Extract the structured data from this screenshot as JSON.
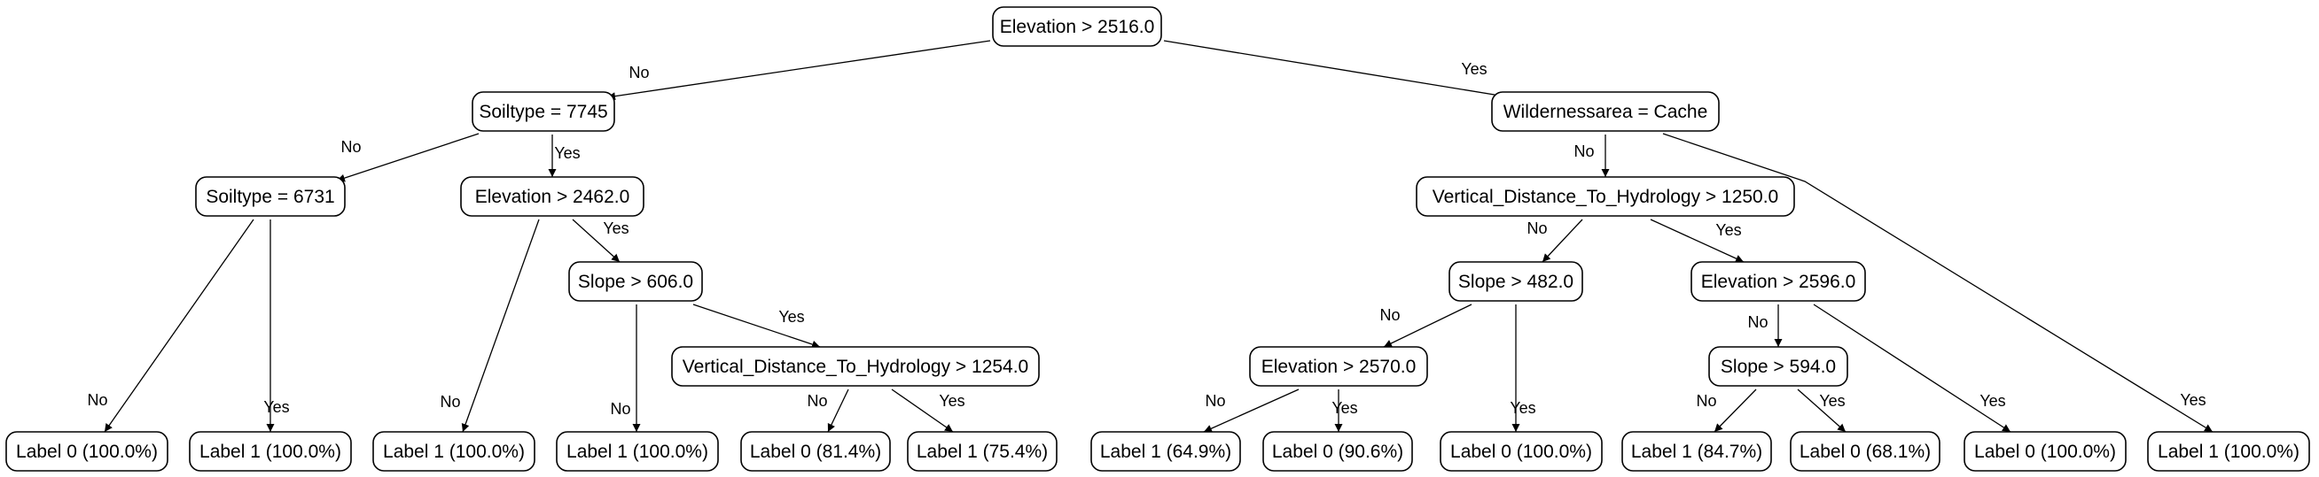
{
  "nodes": {
    "n_root": "Elevation > 2516.0",
    "n_soil7745": "Soiltype = 7745",
    "n_wild": "Wildernessarea = Cache",
    "n_soil6731": "Soiltype = 6731",
    "n_elev2462": "Elevation > 2462.0",
    "n_vdth1250": "Vertical_Distance_To_Hydrology > 1250.0",
    "n_slope606": "Slope > 606.0",
    "n_slope482": "Slope > 482.0",
    "n_elev2596": "Elevation > 2596.0",
    "n_vdth1254": "Vertical_Distance_To_Hydrology > 1254.0",
    "n_elev2570": "Elevation > 2570.0",
    "n_slope594": "Slope > 594.0",
    "l1": "Label 0 (100.0%)",
    "l2": "Label 1 (100.0%)",
    "l3": "Label 1 (100.0%)",
    "l4": "Label 1 (100.0%)",
    "l5": "Label 0 (81.4%)",
    "l6": "Label 1 (75.4%)",
    "l7": "Label 1 (64.9%)",
    "l8": "Label 0 (90.6%)",
    "l9": "Label 0 (100.0%)",
    "l10": "Label 1 (84.7%)",
    "l11": "Label 0 (68.1%)",
    "l12": "Label 0 (100.0%)",
    "l13": "Label 1 (100.0%)"
  },
  "edges": [
    {
      "from": "n_root",
      "to": "n_soil7745",
      "label": "No"
    },
    {
      "from": "n_root",
      "to": "n_wild",
      "label": "Yes"
    },
    {
      "from": "n_soil7745",
      "to": "n_soil6731",
      "label": "No"
    },
    {
      "from": "n_soil7745",
      "to": "n_elev2462",
      "label": "Yes"
    },
    {
      "from": "n_soil6731",
      "to": "l1",
      "label": "No"
    },
    {
      "from": "n_soil6731",
      "to": "l2",
      "label": "Yes"
    },
    {
      "from": "n_elev2462",
      "to": "l3",
      "label": "No"
    },
    {
      "from": "n_elev2462",
      "to": "n_slope606",
      "label": "Yes"
    },
    {
      "from": "n_slope606",
      "to": "l4",
      "label": "No"
    },
    {
      "from": "n_slope606",
      "to": "n_vdth1254",
      "label": "Yes"
    },
    {
      "from": "n_vdth1254",
      "to": "l5",
      "label": "No"
    },
    {
      "from": "n_vdth1254",
      "to": "l6",
      "label": "Yes"
    },
    {
      "from": "n_wild",
      "to": "n_vdth1250",
      "label": "No"
    },
    {
      "from": "n_wild",
      "to": "l13",
      "label": "Yes"
    },
    {
      "from": "n_vdth1250",
      "to": "n_slope482",
      "label": "No"
    },
    {
      "from": "n_vdth1250",
      "to": "n_elev2596",
      "label": "Yes"
    },
    {
      "from": "n_slope482",
      "to": "n_elev2570",
      "label": "No"
    },
    {
      "from": "n_slope482",
      "to": "l9",
      "label": "Yes"
    },
    {
      "from": "n_elev2570",
      "to": "l7",
      "label": "No"
    },
    {
      "from": "n_elev2570",
      "to": "l8",
      "label": "Yes"
    },
    {
      "from": "n_elev2596",
      "to": "n_slope594",
      "label": "No"
    },
    {
      "from": "n_elev2596",
      "to": "l12",
      "label": "Yes"
    },
    {
      "from": "n_slope594",
      "to": "l10",
      "label": "No"
    },
    {
      "from": "n_slope594",
      "to": "l11",
      "label": "Yes"
    }
  ]
}
